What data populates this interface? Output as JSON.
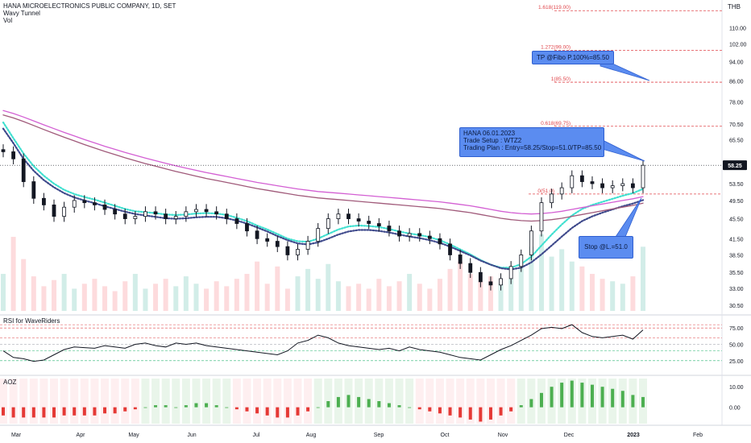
{
  "header": {
    "title": "HANA MICROELECTRONICS PUBLIC COMPANY, 1D, SET",
    "indicator_1": "Wavy Tunnel",
    "indicator_2": "Vol",
    "currency": "THB"
  },
  "callouts": {
    "tp": "TP @Fibo P.100%=85.50",
    "plan_line1": "HANA 06.01.2023",
    "plan_line2": "Trade Setup : WTZ2",
    "plan_line3": "Trading Plan : Entry=58.25/Stop=51.0/TP=85.50",
    "stop": "Stop @L.=51.0"
  },
  "price_badge": "58.25",
  "panels": {
    "rsi_title": "RSI for WaveRiders",
    "aoz_title": "AOZ"
  },
  "chart_data": [
    {
      "type": "candlestick",
      "title": "HANA MICROELECTRONICS PUBLIC COMPANY, 1D, SET",
      "y_scale": "log",
      "ylim": [
        29.5,
        125
      ],
      "y_ticks": [
        30.5,
        33.0,
        35.5,
        38.5,
        41.5,
        45.5,
        49.5,
        53.5,
        58.25,
        65.5,
        70.5,
        78.0,
        86.0,
        94.0,
        102.0,
        110.0
      ],
      "y_tick_labels": [
        "30.50",
        "33.00",
        "35.50",
        "38.50",
        "41.50",
        "45.50",
        "49.50",
        "53.50",
        "58.25",
        "65.50",
        "70.50",
        "78.00",
        "86.00",
        "94.00",
        "102.00",
        "110.00"
      ],
      "x_tick_labels": [
        "Mar",
        "Apr",
        "May",
        "Jun",
        "Jul",
        "Aug",
        "Sep",
        "Oct",
        "Nov",
        "Dec",
        "2023",
        "Feb"
      ],
      "fibonacci_levels": [
        {
          "label": "1.618(119.00)",
          "value": 119.0
        },
        {
          "label": "1.272(99.00)",
          "value": 99.0
        },
        {
          "label": "1(85.50)",
          "value": 85.5
        },
        {
          "label": "0.618(69.75)",
          "value": 69.75
        },
        {
          "label": "0(51.0)",
          "value": 51.0
        }
      ],
      "last_price": 58.25,
      "close_series_approx": [
        62.0,
        60.0,
        54.0,
        50.0,
        48.5,
        46.0,
        48.0,
        49.5,
        49.0,
        48.5,
        47.5,
        46.5,
        45.5,
        46.0,
        47.0,
        46.5,
        45.5,
        46.0,
        47.0,
        47.5,
        47.0,
        46.5,
        45.5,
        44.5,
        43.0,
        41.5,
        41.0,
        40.0,
        38.5,
        39.5,
        41.0,
        43.5,
        45.5,
        46.5,
        45.5,
        45.0,
        44.5,
        44.0,
        43.0,
        42.0,
        42.5,
        42.0,
        41.5,
        40.5,
        38.5,
        37.0,
        35.5,
        34.0,
        33.5,
        34.5,
        36.5,
        38.5,
        43.0,
        49.0,
        51.0,
        52.5,
        55.5,
        54.0,
        53.5,
        52.5,
        53.0,
        53.5,
        52.5,
        58.25
      ],
      "moving_averages": [
        {
          "name": "wave-fast",
          "color": "#40e0d0",
          "values": [
            71.0,
            66.0,
            61.5,
            58.0,
            55.5,
            53.5,
            52.0,
            51.0,
            50.3,
            49.7,
            49.0,
            48.3,
            47.6,
            47.1,
            46.9,
            46.7,
            46.4,
            46.3,
            46.4,
            46.6,
            46.7,
            46.6,
            46.3,
            45.7,
            45.0,
            44.1,
            43.3,
            42.4,
            41.5,
            41.0,
            40.9,
            41.5,
            42.4,
            43.3,
            43.9,
            44.1,
            44.0,
            43.8,
            43.4,
            42.9,
            42.5,
            42.2,
            41.8,
            41.2,
            40.4,
            39.5,
            38.6,
            37.6,
            36.8,
            36.3,
            36.3,
            36.9,
            38.2,
            40.2,
            42.3,
            44.3,
            46.2,
            47.6,
            48.5,
            49.2,
            49.9,
            50.6,
            51.2,
            52.2
          ]
        },
        {
          "name": "wave-slow",
          "color": "#3f4a8c",
          "values": [
            69.0,
            64.5,
            60.0,
            56.8,
            54.4,
            52.6,
            51.2,
            50.2,
            49.5,
            48.9,
            48.2,
            47.6,
            47.0,
            46.5,
            46.2,
            45.9,
            45.6,
            45.5,
            45.6,
            45.8,
            45.9,
            45.9,
            45.6,
            45.1,
            44.5,
            43.7,
            42.9,
            42.0,
            41.2,
            40.6,
            40.4,
            40.8,
            41.5,
            42.3,
            42.9,
            43.2,
            43.2,
            43.0,
            42.7,
            42.3,
            41.9,
            41.6,
            41.2,
            40.7,
            40.0,
            39.2,
            38.4,
            37.5,
            36.8,
            36.2,
            36.0,
            36.3,
            37.2,
            38.6,
            40.2,
            41.9,
            43.6,
            45.0,
            46.0,
            46.8,
            47.5,
            48.2,
            48.8,
            49.6
          ]
        },
        {
          "name": "ma-long-1",
          "color": "#d35fd3",
          "values": [
            75.0,
            74.0,
            72.8,
            71.5,
            70.2,
            69.0,
            67.8,
            66.7,
            65.6,
            64.6,
            63.6,
            62.7,
            61.8,
            61.0,
            60.2,
            59.5,
            58.8,
            58.1,
            57.5,
            56.9,
            56.3,
            55.8,
            55.3,
            54.8,
            54.3,
            53.8,
            53.4,
            53.0,
            52.6,
            52.2,
            51.9,
            51.6,
            51.4,
            51.2,
            51.0,
            50.8,
            50.6,
            50.4,
            50.2,
            50.0,
            49.8,
            49.6,
            49.4,
            49.2,
            48.9,
            48.6,
            48.3,
            47.9,
            47.5,
            47.1,
            46.8,
            46.6,
            46.5,
            46.6,
            46.8,
            47.1,
            47.5,
            47.9,
            48.3,
            48.7,
            49.1,
            49.5,
            49.9,
            50.4
          ]
        },
        {
          "name": "ma-long-2",
          "color": "#a05a7a",
          "values": [
            73.5,
            72.5,
            71.3,
            70.0,
            68.7,
            67.5,
            66.3,
            65.2,
            64.1,
            63.1,
            62.1,
            61.2,
            60.3,
            59.5,
            58.7,
            58.0,
            57.3,
            56.6,
            56.0,
            55.4,
            54.8,
            54.3,
            53.8,
            53.3,
            52.8,
            52.3,
            51.9,
            51.5,
            51.1,
            50.7,
            50.4,
            50.1,
            49.9,
            49.7,
            49.5,
            49.3,
            49.1,
            48.9,
            48.7,
            48.5,
            48.3,
            48.1,
            47.9,
            47.7,
            47.4,
            47.1,
            46.8,
            46.4,
            46.0,
            45.6,
            45.3,
            45.1,
            45.0,
            45.1,
            45.3,
            45.6,
            46.0,
            46.4,
            46.8,
            47.2,
            47.6,
            48.0,
            48.4,
            48.9
          ]
        }
      ],
      "volume_approx": [
        30,
        60,
        42,
        28,
        20,
        25,
        30,
        18,
        22,
        26,
        20,
        16,
        24,
        30,
        18,
        22,
        26,
        20,
        28,
        22,
        18,
        24,
        20,
        26,
        30,
        40,
        22,
        36,
        18,
        28,
        34,
        26,
        38,
        24,
        20,
        22,
        18,
        26,
        20,
        24,
        30,
        22,
        18,
        26,
        34,
        40,
        30,
        24,
        28,
        22,
        26,
        38,
        52,
        62,
        44,
        50,
        40,
        36,
        30,
        26,
        24,
        22,
        28,
        52
      ]
    },
    {
      "type": "line",
      "title": "RSI for WaveRiders",
      "y_ticks": [
        25,
        50,
        75
      ],
      "y_tick_labels": [
        "25.00",
        "50.00",
        "75.00"
      ],
      "values": [
        40,
        30,
        28,
        24,
        26,
        34,
        42,
        46,
        45,
        44,
        48,
        46,
        44,
        50,
        52,
        48,
        46,
        52,
        50,
        52,
        48,
        46,
        44,
        42,
        40,
        38,
        36,
        34,
        40,
        52,
        56,
        64,
        60,
        52,
        48,
        46,
        44,
        42,
        44,
        40,
        46,
        42,
        40,
        38,
        34,
        30,
        28,
        26,
        34,
        42,
        48,
        56,
        64,
        74,
        76,
        74,
        80,
        68,
        62,
        60,
        62,
        64,
        58,
        72
      ]
    },
    {
      "type": "bar",
      "title": "AOZ",
      "y_ticks": [
        0,
        10
      ],
      "y_tick_labels": [
        "0.00",
        "10.00"
      ],
      "values": [
        -4,
        -5,
        -5,
        -5,
        -5,
        -5,
        -4,
        -4,
        -4,
        -4,
        -3,
        -3,
        -2,
        -1,
        0,
        1,
        1,
        0,
        1,
        2,
        2,
        1,
        0,
        -1,
        -2,
        -3,
        -4,
        -5,
        -5,
        -4,
        -2,
        0,
        3,
        5,
        6,
        5,
        4,
        3,
        2,
        1,
        0,
        -1,
        -2,
        -3,
        -4,
        -5,
        -6,
        -7,
        -6,
        -4,
        -2,
        1,
        4,
        7,
        10,
        12,
        13,
        12,
        11,
        10,
        9,
        8,
        6,
        5
      ]
    }
  ]
}
